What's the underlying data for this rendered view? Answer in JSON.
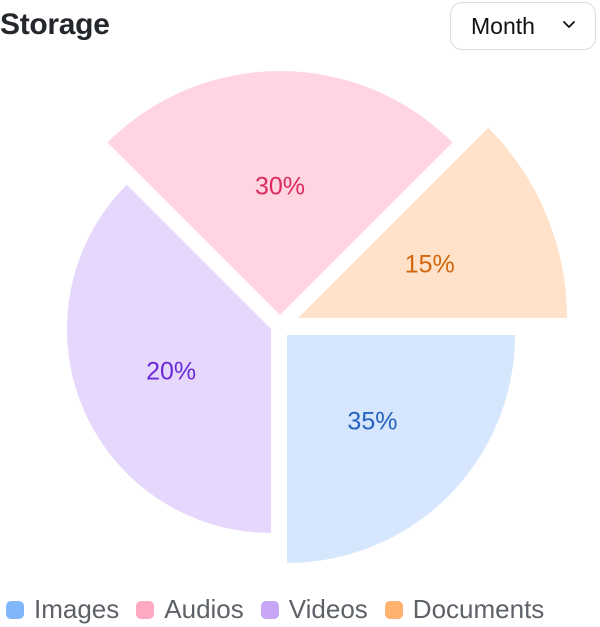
{
  "header": {
    "title": "Storage",
    "period_select": "Month",
    "chevron_icon": "chevron-down-icon"
  },
  "chart_data": {
    "type": "pie",
    "title": "Storage",
    "legend_position": "bottom",
    "slices": [
      {
        "name": "Images",
        "value": 35,
        "label": "35%",
        "color": "#d5e6fd",
        "label_color": "#2463bf",
        "legend_color": "#82b6fb"
      },
      {
        "name": "Videos",
        "value": 20,
        "label": "20%",
        "color": "#e6d8fc",
        "label_color": "#6b2ad6",
        "legend_color": "#c6a6f5"
      },
      {
        "name": "Audios",
        "value": 30,
        "label": "30%",
        "color": "#ffd5e1",
        "label_color": "#dc2b5e",
        "legend_color": "#ffa9c3"
      },
      {
        "name": "Documents",
        "value": 15,
        "label": "15%",
        "color": "#ffe2c9",
        "label_color": "#d3660d",
        "legend_color": "#ffb16f"
      }
    ]
  }
}
